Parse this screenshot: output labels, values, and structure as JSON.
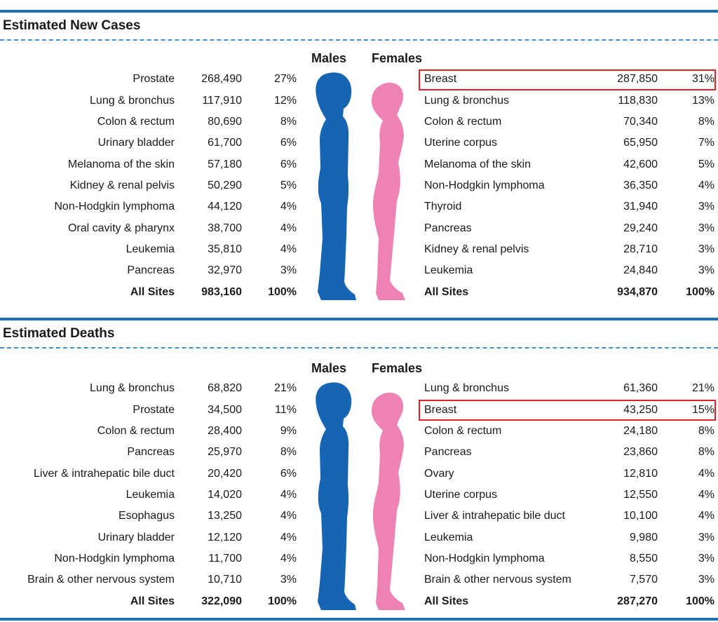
{
  "colors": {
    "rule": "#1d6fb8",
    "male": "#1565b4",
    "female": "#ef82b5",
    "highlight": "#e0232b"
  },
  "headers": {
    "males": "Males",
    "females": "Females"
  },
  "new_cases": {
    "title": "Estimated New Cases",
    "highlight_female_row": 0,
    "males": [
      {
        "site": "Prostate",
        "count": "268,490",
        "pct": "27%"
      },
      {
        "site": "Lung & bronchus",
        "count": "117,910",
        "pct": "12%"
      },
      {
        "site": "Colon & rectum",
        "count": "80,690",
        "pct": "8%"
      },
      {
        "site": "Urinary bladder",
        "count": "61,700",
        "pct": "6%"
      },
      {
        "site": "Melanoma of the skin",
        "count": "57,180",
        "pct": "6%"
      },
      {
        "site": "Kidney & renal pelvis",
        "count": "50,290",
        "pct": "5%"
      },
      {
        "site": "Non-Hodgkin lymphoma",
        "count": "44,120",
        "pct": "4%"
      },
      {
        "site": "Oral cavity & pharynx",
        "count": "38,700",
        "pct": "4%"
      },
      {
        "site": "Leukemia",
        "count": "35,810",
        "pct": "4%"
      },
      {
        "site": "Pancreas",
        "count": "32,970",
        "pct": "3%"
      },
      {
        "site": "All Sites",
        "count": "983,160",
        "pct": "100%",
        "total": true
      }
    ],
    "females": [
      {
        "site": "Breast",
        "count": "287,850",
        "pct": "31%"
      },
      {
        "site": "Lung & bronchus",
        "count": "118,830",
        "pct": "13%"
      },
      {
        "site": "Colon & rectum",
        "count": "70,340",
        "pct": "8%"
      },
      {
        "site": "Uterine corpus",
        "count": "65,950",
        "pct": "7%"
      },
      {
        "site": "Melanoma of the skin",
        "count": "42,600",
        "pct": "5%"
      },
      {
        "site": "Non-Hodgkin lymphoma",
        "count": "36,350",
        "pct": "4%"
      },
      {
        "site": "Thyroid",
        "count": "31,940",
        "pct": "3%"
      },
      {
        "site": "Pancreas",
        "count": "29,240",
        "pct": "3%"
      },
      {
        "site": "Kidney & renal pelvis",
        "count": "28,710",
        "pct": "3%"
      },
      {
        "site": "Leukemia",
        "count": "24,840",
        "pct": "3%"
      },
      {
        "site": "All Sites",
        "count": "934,870",
        "pct": "100%",
        "total": true
      }
    ]
  },
  "deaths": {
    "title": "Estimated Deaths",
    "highlight_female_row": 1,
    "males": [
      {
        "site": "Lung & bronchus",
        "count": "68,820",
        "pct": "21%"
      },
      {
        "site": "Prostate",
        "count": "34,500",
        "pct": "11%"
      },
      {
        "site": "Colon & rectum",
        "count": "28,400",
        "pct": "9%"
      },
      {
        "site": "Pancreas",
        "count": "25,970",
        "pct": "8%"
      },
      {
        "site": "Liver & intrahepatic bile duct",
        "count": "20,420",
        "pct": "6%"
      },
      {
        "site": "Leukemia",
        "count": "14,020",
        "pct": "4%"
      },
      {
        "site": "Esophagus",
        "count": "13,250",
        "pct": "4%"
      },
      {
        "site": "Urinary bladder",
        "count": "12,120",
        "pct": "4%"
      },
      {
        "site": "Non-Hodgkin lymphoma",
        "count": "11,700",
        "pct": "4%"
      },
      {
        "site": "Brain & other nervous system",
        "count": "10,710",
        "pct": "3%"
      },
      {
        "site": "All Sites",
        "count": "322,090",
        "pct": "100%",
        "total": true
      }
    ],
    "females": [
      {
        "site": "Lung & bronchus",
        "count": "61,360",
        "pct": "21%"
      },
      {
        "site": "Breast",
        "count": "43,250",
        "pct": "15%"
      },
      {
        "site": "Colon & rectum",
        "count": "24,180",
        "pct": "8%"
      },
      {
        "site": "Pancreas",
        "count": "23,860",
        "pct": "8%"
      },
      {
        "site": "Ovary",
        "count": "12,810",
        "pct": "4%"
      },
      {
        "site": "Uterine corpus",
        "count": "12,550",
        "pct": "4%"
      },
      {
        "site": "Liver & intrahepatic bile duct",
        "count": "10,100",
        "pct": "4%"
      },
      {
        "site": "Leukemia",
        "count": "9,980",
        "pct": "3%"
      },
      {
        "site": "Non-Hodgkin lymphoma",
        "count": "8,550",
        "pct": "3%"
      },
      {
        "site": "Brain & other nervous system",
        "count": "7,570",
        "pct": "3%"
      },
      {
        "site": "All Sites",
        "count": "287,270",
        "pct": "100%",
        "total": true
      }
    ]
  }
}
